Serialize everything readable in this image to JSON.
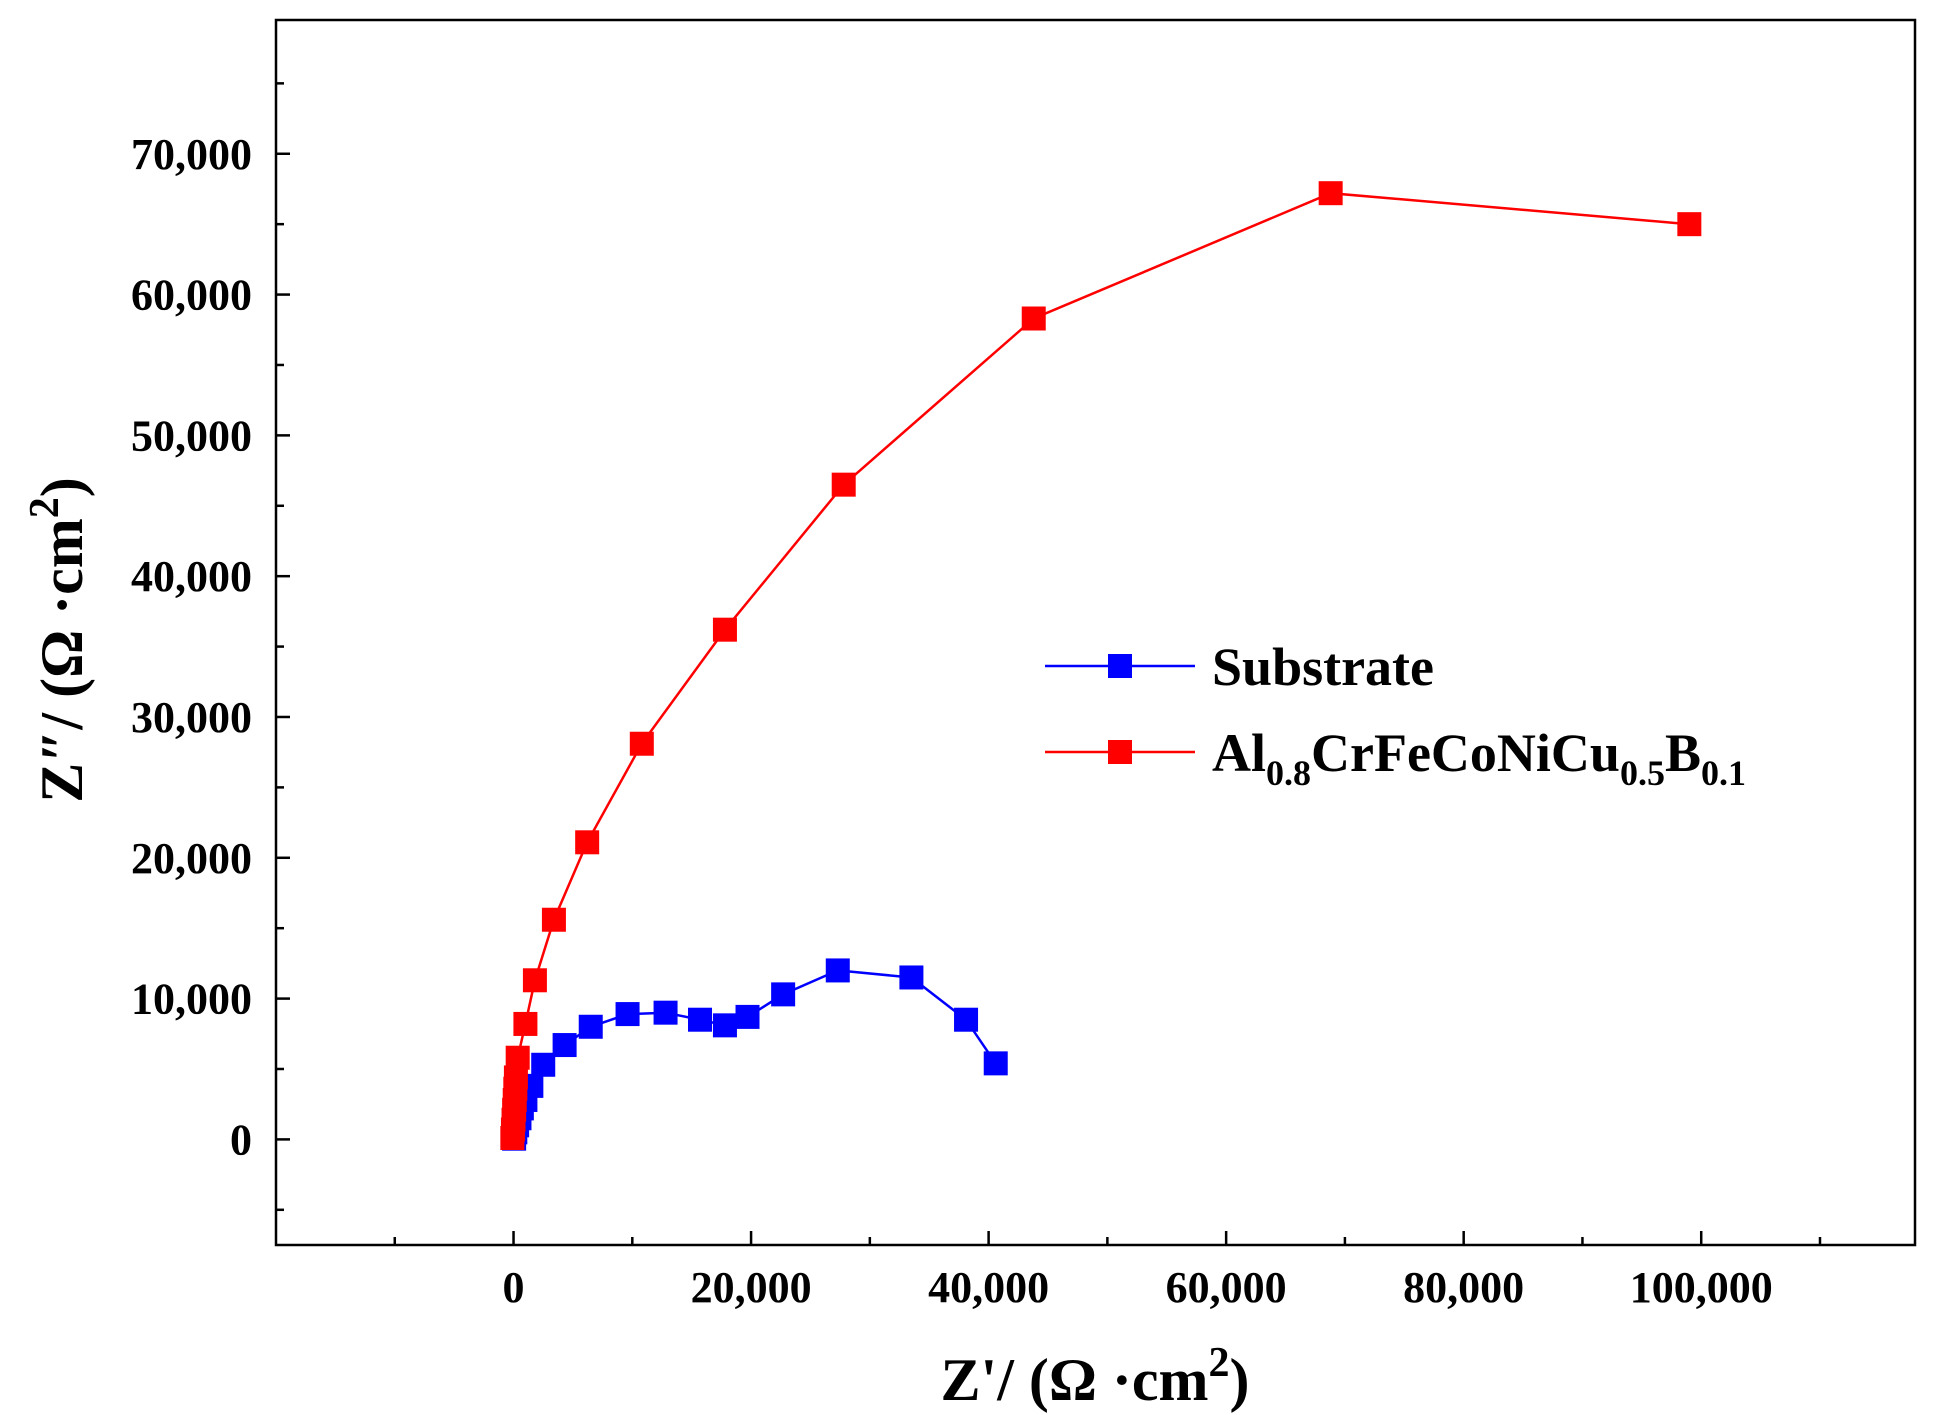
{
  "chart_data": {
    "type": "scatter",
    "xlabel": {
      "main": "Z'/ (Ω ·cm",
      "sup": "2",
      "close": ")"
    },
    "ylabel": {
      "main": "Z″/ (Ω ·cm",
      "sup": "2",
      "close": ")"
    },
    "xlim": [
      -20000,
      118000
    ],
    "ylim": [
      -7500,
      79500
    ],
    "xticks": [
      0,
      20000,
      40000,
      60000,
      80000,
      100000
    ],
    "xtick_labels": [
      "0",
      "20,000",
      "40,000",
      "60,000",
      "80,000",
      "100,000"
    ],
    "xminor": [
      -10000,
      10000,
      30000,
      50000,
      70000,
      90000,
      110000
    ],
    "yticks": [
      0,
      10000,
      20000,
      30000,
      40000,
      50000,
      60000,
      70000
    ],
    "ytick_labels": [
      "0",
      "10,000",
      "20,000",
      "30,000",
      "40,000",
      "50,000",
      "60,000",
      "70,000"
    ],
    "yminor": [
      -5000,
      5000,
      15000,
      25000,
      35000,
      45000,
      55000,
      65000,
      75000
    ],
    "grid": false,
    "legend_position": "right",
    "series": [
      {
        "name": "Substrate",
        "color": "#0000ff",
        "marker": "square",
        "legend_parts": [
          {
            "t": "Substrate",
            "sub": false
          }
        ],
        "x": [
          50,
          150,
          300,
          500,
          700,
          1000,
          1500,
          2500,
          4300,
          6500,
          9600,
          12800,
          15700,
          17800,
          19700,
          22700,
          27300,
          33500,
          38100,
          40600
        ],
        "y": [
          50,
          500,
          1000,
          1500,
          2200,
          2800,
          3800,
          5300,
          6700,
          8000,
          8900,
          9000,
          8500,
          8100,
          8700,
          10300,
          12000,
          11500,
          8500,
          5400
        ]
      },
      {
        "name": "Al0.8CrFeCoNiCu0.5B0.1",
        "color": "#ff0000",
        "marker": "square",
        "legend_parts": [
          {
            "t": "Al",
            "sub": false
          },
          {
            "t": "0.8",
            "sub": true
          },
          {
            "t": "CrFeCoNiCu",
            "sub": false
          },
          {
            "t": "0.5",
            "sub": true
          },
          {
            "t": "B",
            "sub": false
          },
          {
            "t": "0.1",
            "sub": true
          }
        ],
        "x": [
          -100,
          -50,
          0,
          50,
          100,
          150,
          200,
          350,
          1000,
          1800,
          3400,
          6200,
          10800,
          17800,
          27800,
          43800,
          68800,
          99000
        ],
        "y": [
          100,
          700,
          1400,
          2100,
          2800,
          3600,
          4400,
          5800,
          8200,
          11300,
          15600,
          21100,
          28100,
          36200,
          46500,
          58300,
          67200,
          65000
        ]
      }
    ]
  }
}
